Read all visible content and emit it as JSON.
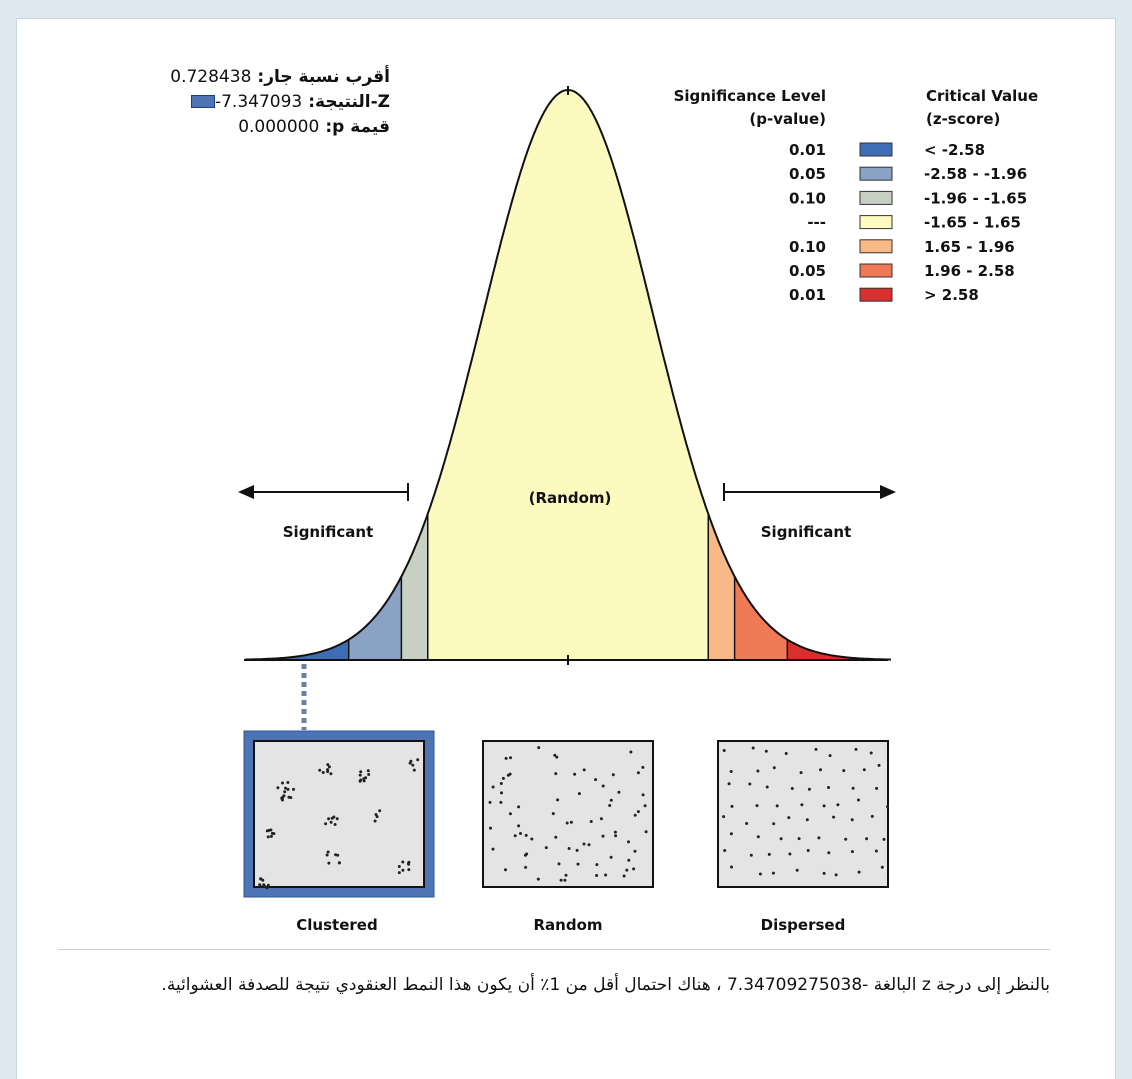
{
  "stats": {
    "nnr_label": "أقرب نسبة جار:",
    "nnr_value": "0.728438",
    "z_label": "Z-النتيجة:",
    "z_value": "-7.347093",
    "p_label": "قيمة p:",
    "p_value": "0.000000"
  },
  "legend": {
    "sig_header_line1": "Significance Level",
    "sig_header_line2": "(p-value)",
    "crit_header_line1": "Critical Value",
    "crit_header_line2": "(z-score)",
    "rows": [
      {
        "p": "0.01",
        "z": "< -2.58",
        "color": "#3f6db5"
      },
      {
        "p": "0.05",
        "z": "-2.58 - -1.96",
        "color": "#8aa2c3"
      },
      {
        "p": "0.10",
        "z": "-1.96 - -1.65",
        "color": "#c7d0c2"
      },
      {
        "p": "---",
        "z": "-1.65 - 1.65",
        "color": "#fdfac0"
      },
      {
        "p": "0.10",
        "z": "1.65 - 1.96",
        "color": "#f8b987"
      },
      {
        "p": "0.05",
        "z": "1.96 - 2.58",
        "color": "#ef7a55"
      },
      {
        "p": "0.01",
        "z": "> 2.58",
        "color": "#d7302f"
      }
    ]
  },
  "curve": {
    "random_label": "(Random)",
    "significant_left": "Significant",
    "significant_right": "Significant",
    "zones": [
      -2.58,
      -1.96,
      -1.65,
      1.65,
      1.96,
      2.58
    ],
    "marker_z": -7.347093
  },
  "patterns": [
    {
      "label": "Clustered",
      "selected": true
    },
    {
      "label": "Random",
      "selected": false
    },
    {
      "label": "Dispersed",
      "selected": false
    }
  ],
  "footer": {
    "text": "بالنظر إلى درجة z البالغة -7.34709275038 ، هناك احتمال أقل من 1٪ أن يكون هذا النمط العنقودي نتيجة للصدفة العشوائية."
  }
}
